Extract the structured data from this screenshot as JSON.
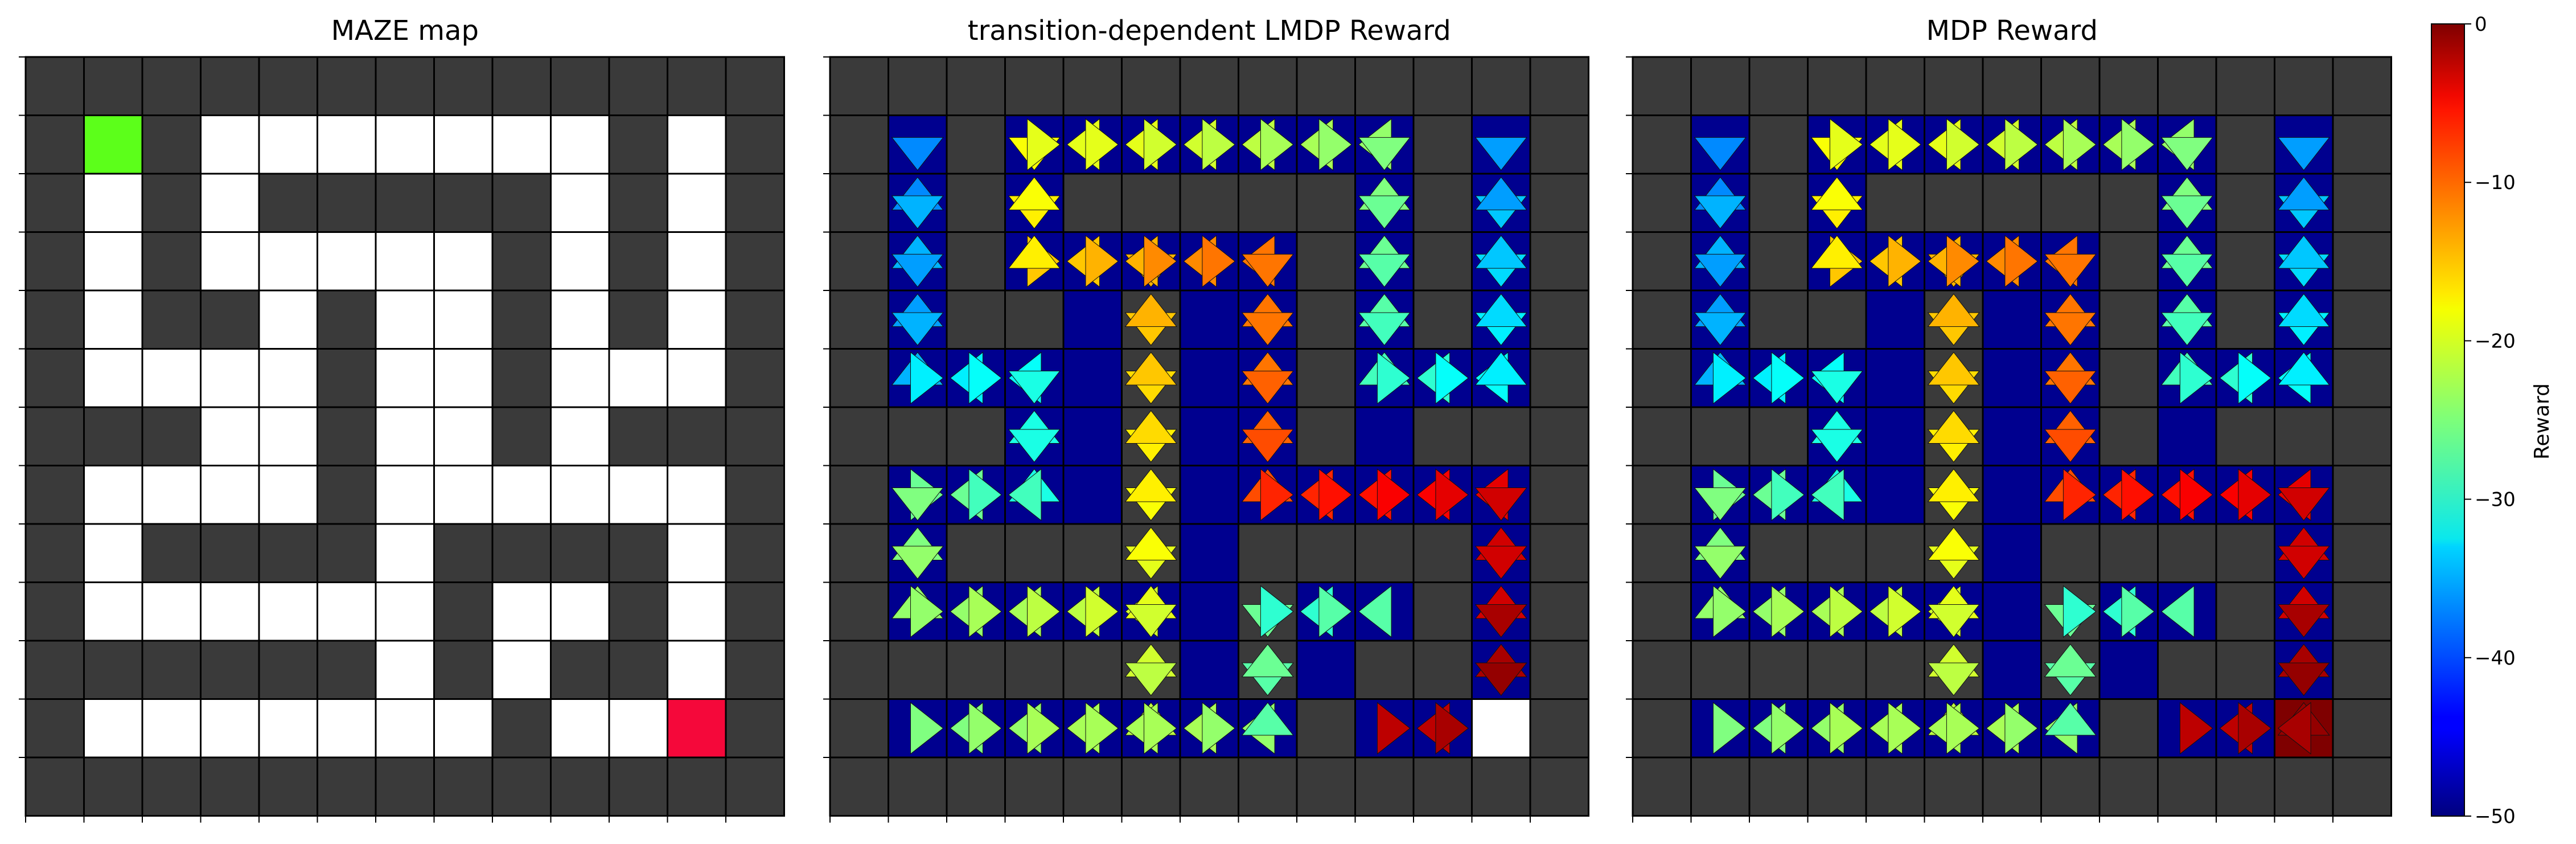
{
  "figure": {
    "colorbar": {
      "label": "Reward",
      "min": -50,
      "max": 0,
      "ticks": [
        "0",
        "−10",
        "−20",
        "−30",
        "−40",
        "−50"
      ],
      "tick_values": [
        0,
        -10,
        -20,
        -30,
        -40,
        -50
      ],
      "colormap": "jet"
    }
  },
  "chart_data": [
    {
      "type": "heatmap",
      "title": "MAZE map",
      "grid": true,
      "colors": {
        "wall": "#3a3a3a",
        "free": "#ffffff",
        "start": "#5cff1a",
        "goal": "#f5083a",
        "grid": "#000000"
      },
      "legend_codes": {
        "0": "wall",
        "1": "free",
        "2": "start",
        "3": "goal"
      },
      "cells": [
        "0000000000000",
        "0201111111010",
        "0101000001010",
        "0101111101010",
        "0100101101010",
        "0111101101110",
        "0001101101000",
        "0111101111110",
        "0100001000010",
        "0111111011010",
        "0000001010010",
        "0111111101130",
        "0000000000000"
      ]
    },
    {
      "type": "heatmap",
      "title": "transition-dependent LMDP Reward",
      "grid": true,
      "note": "each open cell shows triangles for moves to neighbours; values are rewards",
      "triangles": [
        {
          "row": 1,
          "col": 1,
          "dir": "down",
          "value": -37
        },
        {
          "row": 2,
          "col": 1,
          "dir": "up",
          "value": -37
        },
        {
          "row": 2,
          "col": 1,
          "dir": "down",
          "value": -35
        },
        {
          "row": 3,
          "col": 1,
          "dir": "up",
          "value": -35
        },
        {
          "row": 3,
          "col": 1,
          "dir": "down",
          "value": -36
        },
        {
          "row": 4,
          "col": 1,
          "dir": "up",
          "value": -36
        },
        {
          "row": 4,
          "col": 1,
          "dir": "down",
          "value": -35
        },
        {
          "row": 5,
          "col": 1,
          "dir": "up",
          "value": -35
        },
        {
          "row": 5,
          "col": 1,
          "dir": "right",
          "value": -32
        },
        {
          "row": 5,
          "col": 2,
          "dir": "left",
          "value": -32
        },
        {
          "row": 5,
          "col": 2,
          "dir": "right",
          "value": -31
        },
        {
          "row": 5,
          "col": 3,
          "dir": "left",
          "value": -31
        },
        {
          "row": 5,
          "col": 3,
          "dir": "down",
          "value": -30
        },
        {
          "row": 6,
          "col": 3,
          "dir": "up",
          "value": -30
        },
        {
          "row": 6,
          "col": 3,
          "dir": "down",
          "value": -30
        },
        {
          "row": 7,
          "col": 3,
          "dir": "up",
          "value": -30
        },
        {
          "row": 7,
          "col": 1,
          "dir": "right",
          "value": -26
        },
        {
          "row": 7,
          "col": 2,
          "dir": "left",
          "value": -26
        },
        {
          "row": 7,
          "col": 2,
          "dir": "right",
          "value": -28
        },
        {
          "row": 7,
          "col": 3,
          "dir": "left",
          "value": -28
        },
        {
          "row": 7,
          "col": 1,
          "dir": "down",
          "value": -25
        },
        {
          "row": 8,
          "col": 1,
          "dir": "up",
          "value": -25
        },
        {
          "row": 8,
          "col": 1,
          "dir": "down",
          "value": -24
        },
        {
          "row": 9,
          "col": 1,
          "dir": "up",
          "value": -24
        },
        {
          "row": 9,
          "col": 1,
          "dir": "right",
          "value": -24
        },
        {
          "row": 9,
          "col": 2,
          "dir": "left",
          "value": -24
        },
        {
          "row": 9,
          "col": 2,
          "dir": "right",
          "value": -23
        },
        {
          "row": 9,
          "col": 3,
          "dir": "left",
          "value": -23
        },
        {
          "row": 9,
          "col": 3,
          "dir": "right",
          "value": -22
        },
        {
          "row": 9,
          "col": 4,
          "dir": "left",
          "value": -22
        },
        {
          "row": 9,
          "col": 4,
          "dir": "right",
          "value": -21
        },
        {
          "row": 9,
          "col": 5,
          "dir": "left",
          "value": -21
        },
        {
          "row": 9,
          "col": 5,
          "dir": "up",
          "value": -20
        },
        {
          "row": 8,
          "col": 5,
          "dir": "down",
          "value": -20
        },
        {
          "row": 8,
          "col": 5,
          "dir": "up",
          "value": -19
        },
        {
          "row": 7,
          "col": 5,
          "dir": "down",
          "value": -19
        },
        {
          "row": 7,
          "col": 5,
          "dir": "up",
          "value": -18
        },
        {
          "row": 6,
          "col": 5,
          "dir": "down",
          "value": -18
        },
        {
          "row": 6,
          "col": 5,
          "dir": "up",
          "value": -17
        },
        {
          "row": 5,
          "col": 5,
          "dir": "down",
          "value": -17
        },
        {
          "row": 5,
          "col": 5,
          "dir": "up",
          "value": -16
        },
        {
          "row": 4,
          "col": 5,
          "dir": "down",
          "value": -16
        },
        {
          "row": 4,
          "col": 5,
          "dir": "up",
          "value": -15
        },
        {
          "row": 3,
          "col": 5,
          "dir": "down",
          "value": -15
        },
        {
          "row": 3,
          "col": 3,
          "dir": "right",
          "value": -16
        },
        {
          "row": 3,
          "col": 4,
          "dir": "left",
          "value": -16
        },
        {
          "row": 3,
          "col": 4,
          "dir": "right",
          "value": -15
        },
        {
          "row": 3,
          "col": 5,
          "dir": "left",
          "value": -15
        },
        {
          "row": 3,
          "col": 5,
          "dir": "right",
          "value": -13
        },
        {
          "row": 3,
          "col": 6,
          "dir": "left",
          "value": -13
        },
        {
          "row": 3,
          "col": 6,
          "dir": "right",
          "value": -12
        },
        {
          "row": 3,
          "col": 7,
          "dir": "left",
          "value": -12
        },
        {
          "row": 3,
          "col": 7,
          "dir": "down",
          "value": -12
        },
        {
          "row": 4,
          "col": 7,
          "dir": "up",
          "value": -12
        },
        {
          "row": 4,
          "col": 7,
          "dir": "down",
          "value": -12
        },
        {
          "row": 5,
          "col": 7,
          "dir": "up",
          "value": -12
        },
        {
          "row": 5,
          "col": 7,
          "dir": "down",
          "value": -11
        },
        {
          "row": 6,
          "col": 7,
          "dir": "up",
          "value": -11
        },
        {
          "row": 6,
          "col": 7,
          "dir": "down",
          "value": -10
        },
        {
          "row": 7,
          "col": 7,
          "dir": "up",
          "value": -10
        },
        {
          "row": 7,
          "col": 7,
          "dir": "right",
          "value": -8
        },
        {
          "row": 7,
          "col": 8,
          "dir": "left",
          "value": -8
        },
        {
          "row": 7,
          "col": 8,
          "dir": "right",
          "value": -7
        },
        {
          "row": 7,
          "col": 9,
          "dir": "left",
          "value": -7
        },
        {
          "row": 7,
          "col": 9,
          "dir": "right",
          "value": -6
        },
        {
          "row": 7,
          "col": 10,
          "dir": "left",
          "value": -6
        },
        {
          "row": 7,
          "col": 10,
          "dir": "right",
          "value": -5
        },
        {
          "row": 7,
          "col": 11,
          "dir": "left",
          "value": -5
        },
        {
          "row": 7,
          "col": 11,
          "dir": "down",
          "value": -4
        },
        {
          "row": 8,
          "col": 11,
          "dir": "up",
          "value": -4
        },
        {
          "row": 8,
          "col": 11,
          "dir": "down",
          "value": -4
        },
        {
          "row": 9,
          "col": 11,
          "dir": "up",
          "value": -4
        },
        {
          "row": 9,
          "col": 11,
          "dir": "down",
          "value": -2
        },
        {
          "row": 10,
          "col": 11,
          "dir": "up",
          "value": -2
        },
        {
          "row": 10,
          "col": 11,
          "dir": "down",
          "value": -1
        },
        {
          "row": 11,
          "col": 11,
          "dir": "up",
          "value": -1
        },
        {
          "row": 11,
          "col": 9,
          "dir": "right",
          "value": -3
        },
        {
          "row": 11,
          "col": 10,
          "dir": "left",
          "value": -3
        },
        {
          "row": 11,
          "col": 10,
          "dir": "right",
          "value": -2
        },
        {
          "row": 11,
          "col": 11,
          "dir": "left",
          "value": -2
        },
        {
          "row": 2,
          "col": 3,
          "dir": "down",
          "value": -18
        },
        {
          "row": 3,
          "col": 3,
          "dir": "up",
          "value": -18
        },
        {
          "row": 1,
          "col": 3,
          "dir": "down",
          "value": -19
        },
        {
          "row": 2,
          "col": 3,
          "dir": "up",
          "value": -19
        },
        {
          "row": 1,
          "col": 3,
          "dir": "right",
          "value": -20
        },
        {
          "row": 1,
          "col": 4,
          "dir": "left",
          "value": -20
        },
        {
          "row": 1,
          "col": 4,
          "dir": "right",
          "value": -20
        },
        {
          "row": 1,
          "col": 5,
          "dir": "left",
          "value": -20
        },
        {
          "row": 1,
          "col": 5,
          "dir": "right",
          "value": -21
        },
        {
          "row": 1,
          "col": 6,
          "dir": "left",
          "value": -21
        },
        {
          "row": 1,
          "col": 6,
          "dir": "right",
          "value": -22
        },
        {
          "row": 1,
          "col": 7,
          "dir": "left",
          "value": -22
        },
        {
          "row": 1,
          "col": 7,
          "dir": "right",
          "value": -23
        },
        {
          "row": 1,
          "col": 8,
          "dir": "left",
          "value": -23
        },
        {
          "row": 1,
          "col": 8,
          "dir": "right",
          "value": -24
        },
        {
          "row": 1,
          "col": 9,
          "dir": "left",
          "value": -24
        },
        {
          "row": 1,
          "col": 9,
          "dir": "down",
          "value": -25
        },
        {
          "row": 2,
          "col": 9,
          "dir": "up",
          "value": -25
        },
        {
          "row": 2,
          "col": 9,
          "dir": "down",
          "value": -26
        },
        {
          "row": 3,
          "col": 9,
          "dir": "up",
          "value": -26
        },
        {
          "row": 3,
          "col": 9,
          "dir": "down",
          "value": -27
        },
        {
          "row": 4,
          "col": 9,
          "dir": "up",
          "value": -27
        },
        {
          "row": 4,
          "col": 9,
          "dir": "down",
          "value": -28
        },
        {
          "row": 5,
          "col": 9,
          "dir": "up",
          "value": -28
        },
        {
          "row": 5,
          "col": 9,
          "dir": "right",
          "value": -29
        },
        {
          "row": 5,
          "col": 10,
          "dir": "left",
          "value": -29
        },
        {
          "row": 5,
          "col": 10,
          "dir": "right",
          "value": -31
        },
        {
          "row": 5,
          "col": 11,
          "dir": "left",
          "value": -31
        },
        {
          "row": 5,
          "col": 11,
          "dir": "up",
          "value": -32
        },
        {
          "row": 4,
          "col": 11,
          "dir": "down",
          "value": -32
        },
        {
          "row": 4,
          "col": 11,
          "dir": "up",
          "value": -33
        },
        {
          "row": 3,
          "col": 11,
          "dir": "down",
          "value": -33
        },
        {
          "row": 3,
          "col": 11,
          "dir": "up",
          "value": -34
        },
        {
          "row": 2,
          "col": 11,
          "dir": "down",
          "value": -34
        },
        {
          "row": 2,
          "col": 11,
          "dir": "up",
          "value": -36
        },
        {
          "row": 1,
          "col": 11,
          "dir": "down",
          "value": -36
        },
        {
          "row": 9,
          "col": 5,
          "dir": "down",
          "value": -21
        },
        {
          "row": 10,
          "col": 5,
          "dir": "up",
          "value": -21
        },
        {
          "row": 10,
          "col": 5,
          "dir": "down",
          "value": -22
        },
        {
          "row": 11,
          "col": 5,
          "dir": "up",
          "value": -22
        },
        {
          "row": 11,
          "col": 1,
          "dir": "right",
          "value": -25
        },
        {
          "row": 11,
          "col": 2,
          "dir": "left",
          "value": -25
        },
        {
          "row": 11,
          "col": 2,
          "dir": "right",
          "value": -24
        },
        {
          "row": 11,
          "col": 3,
          "dir": "left",
          "value": -24
        },
        {
          "row": 11,
          "col": 3,
          "dir": "right",
          "value": -23
        },
        {
          "row": 11,
          "col": 4,
          "dir": "left",
          "value": -23
        },
        {
          "row": 11,
          "col": 4,
          "dir": "right",
          "value": -23
        },
        {
          "row": 11,
          "col": 5,
          "dir": "left",
          "value": -23
        },
        {
          "row": 11,
          "col": 5,
          "dir": "right",
          "value": -23
        },
        {
          "row": 11,
          "col": 6,
          "dir": "left",
          "value": -23
        },
        {
          "row": 11,
          "col": 6,
          "dir": "right",
          "value": -24
        },
        {
          "row": 11,
          "col": 7,
          "dir": "left",
          "value": -24
        },
        {
          "row": 11,
          "col": 7,
          "dir": "up",
          "value": -27
        },
        {
          "row": 10,
          "col": 7,
          "dir": "down",
          "value": -27
        },
        {
          "row": 10,
          "col": 7,
          "dir": "up",
          "value": -26
        },
        {
          "row": 9,
          "col": 7,
          "dir": "down",
          "value": -26
        },
        {
          "row": 9,
          "col": 7,
          "dir": "right",
          "value": -29
        },
        {
          "row": 9,
          "col": 8,
          "dir": "left",
          "value": -29
        },
        {
          "row": 9,
          "col": 8,
          "dir": "right",
          "value": -27
        },
        {
          "row": 9,
          "col": 9,
          "dir": "left",
          "value": -27
        }
      ],
      "goal_cell": {
        "row": 11,
        "col": 11,
        "color": "#ffffff"
      }
    },
    {
      "type": "heatmap",
      "title": "MDP Reward",
      "grid": true,
      "note": "same layout as LMDP panel with a marked goal cell",
      "reuse_triangles_from": "transition-dependent LMDP Reward",
      "goal_cell": {
        "row": 11,
        "col": 11,
        "color": "#7f0000"
      }
    }
  ]
}
